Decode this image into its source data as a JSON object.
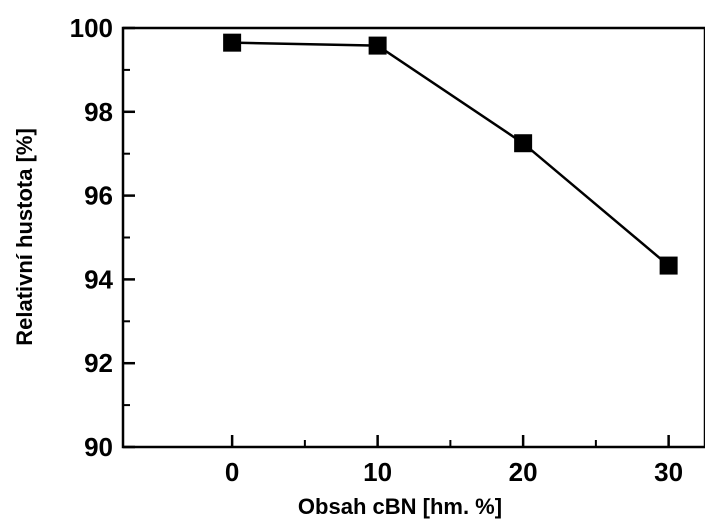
{
  "chart_data": {
    "type": "line",
    "title": "",
    "xlabel": "Obsah cBN [hm. %]",
    "ylabel": "Relativní hustota [%]",
    "xlim": [
      -7.5,
      32.5
    ],
    "ylim": [
      90,
      100
    ],
    "xticks": [
      "0",
      "10",
      "20",
      "30"
    ],
    "yticks": [
      "90",
      "92",
      "94",
      "96",
      "98",
      "100"
    ],
    "grid": false,
    "legend": "none",
    "series": [
      {
        "x": [
          0,
          10,
          20,
          30
        ],
        "y": [
          99.65,
          99.58,
          97.25,
          94.33
        ],
        "marker": "square",
        "color": "#000000"
      }
    ]
  }
}
